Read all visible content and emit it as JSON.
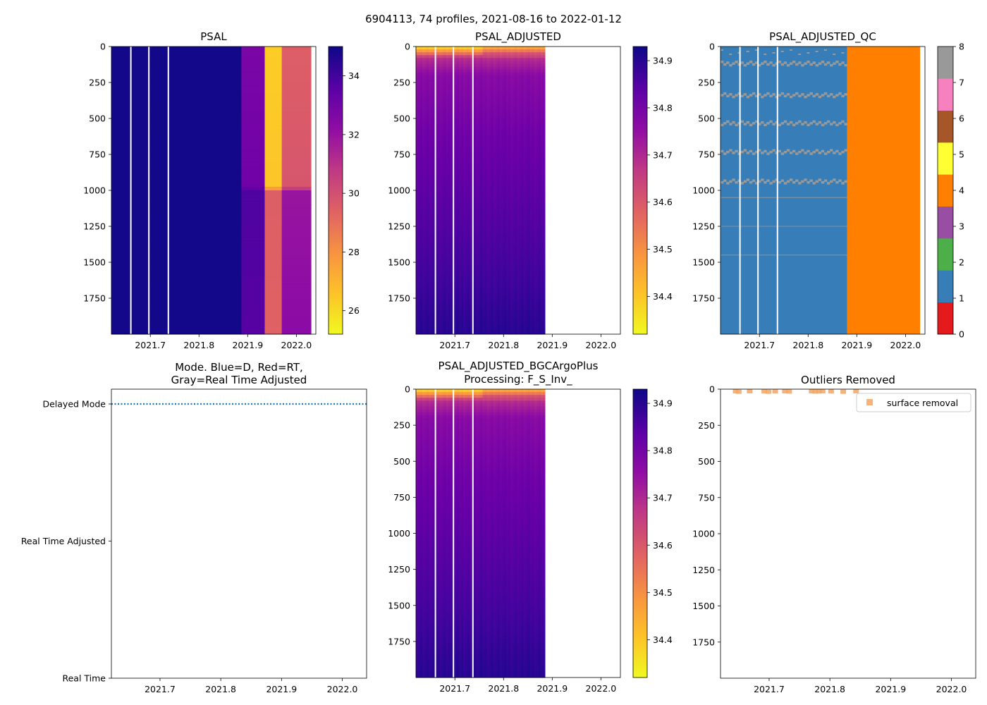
{
  "suptitle": "6904113, 74 profiles, 2021-08-16 to 2022-01-12",
  "colors": {
    "qc_good": "#377eb8",
    "qc_bad": "#ff7f00",
    "qc_missing": "#999999",
    "delayed": "#1f77b4",
    "outlier": "#f4a460"
  },
  "chart_data": [
    {
      "id": "psal",
      "type": "heatmap",
      "title": "PSAL",
      "xlim": [
        2021.62,
        2022.04
      ],
      "x_ticks": [
        "2021.7",
        "2021.8",
        "2021.9",
        "2022.0"
      ],
      "ylim": [
        2000,
        0
      ],
      "y_ticks": [
        "0",
        "250",
        "500",
        "750",
        "1000",
        "1250",
        "1500",
        "1750"
      ],
      "colormap": "plasma_r",
      "clim": [
        25.2,
        35.0
      ],
      "colorbar_ticks": [
        "34",
        "32",
        "30",
        "28",
        "26"
      ],
      "colorbar_tick_values": [
        34,
        32,
        30,
        28,
        26
      ],
      "data_end_x": 2022.03,
      "gap_lines_x": [
        2021.66,
        2021.697,
        2021.737
      ],
      "segments": [
        {
          "x0": 2021.62,
          "x1": 2021.887,
          "depth_profile": [
            [
              0,
              34.9
            ],
            [
              2000,
              34.9
            ]
          ]
        },
        {
          "x0": 2021.887,
          "x1": 2021.935,
          "depth_profile": [
            [
              0,
              32.6
            ],
            [
              980,
              32.9
            ],
            [
              1000,
              33.7
            ],
            [
              2000,
              33.5
            ]
          ]
        },
        {
          "x0": 2021.935,
          "x1": 2021.97,
          "depth_profile": [
            [
              0,
              26.2
            ],
            [
              980,
              26.4
            ],
            [
              1000,
              29.3
            ],
            [
              2000,
              29.2
            ]
          ]
        },
        {
          "x0": 2021.97,
          "x1": 2022.03,
          "depth_profile": [
            [
              0,
              29.3
            ],
            [
              980,
              29.6
            ],
            [
              1000,
              31.8
            ],
            [
              2000,
              32.2
            ]
          ]
        }
      ]
    },
    {
      "id": "psal_adjusted",
      "type": "heatmap",
      "title": "PSAL_ADJUSTED",
      "xlim": [
        2021.62,
        2022.04
      ],
      "x_ticks": [
        "2021.7",
        "2021.8",
        "2021.9",
        "2022.0"
      ],
      "ylim": [
        2000,
        0
      ],
      "y_ticks": [
        "0",
        "250",
        "500",
        "750",
        "1000",
        "1250",
        "1500",
        "1750"
      ],
      "colormap": "plasma_r",
      "clim": [
        34.32,
        34.93
      ],
      "colorbar_ticks": [
        "34.9",
        "34.8",
        "34.7",
        "34.6",
        "34.5",
        "34.4"
      ],
      "colorbar_tick_values": [
        34.9,
        34.8,
        34.7,
        34.6,
        34.5,
        34.4
      ],
      "data_end_x": 2021.885,
      "gap_lines_x": [
        2021.66,
        2021.697,
        2021.737
      ],
      "depth_profile": [
        [
          0,
          34.35
        ],
        [
          40,
          34.5
        ],
        [
          80,
          34.68
        ],
        [
          200,
          34.76
        ],
        [
          600,
          34.8
        ],
        [
          1200,
          34.84
        ],
        [
          2000,
          34.9
        ]
      ]
    },
    {
      "id": "psal_adjusted_qc",
      "type": "heatmap",
      "title": "PSAL_ADJUSTED_QC",
      "xlim": [
        2021.62,
        2022.04
      ],
      "x_ticks": [
        "2021.7",
        "2021.8",
        "2021.9",
        "2022.0"
      ],
      "ylim": [
        2000,
        0
      ],
      "y_ticks": [
        "0",
        "250",
        "500",
        "750",
        "1000",
        "1250",
        "1500",
        "1750"
      ],
      "colorbar_ticks": [
        "8",
        "7",
        "6",
        "5",
        "4",
        "3",
        "2",
        "1",
        "0"
      ],
      "colorbar_tick_values": [
        8,
        7,
        6,
        5,
        4,
        3,
        2,
        1,
        0
      ],
      "qc_colors": [
        "#e41a1c",
        "#377eb8",
        "#4daf4a",
        "#984ea3",
        "#ff7f00",
        "#ffff33",
        "#a65628",
        "#f781bf",
        "#999999"
      ],
      "qc1_x_range": [
        2021.62,
        2021.88
      ],
      "qc4_x_range": [
        2021.88,
        2022.03
      ],
      "qc8_depth_bands": [
        110,
        330,
        525,
        725,
        930
      ],
      "gap_lines_x": [
        2021.66,
        2021.697,
        2021.737
      ]
    },
    {
      "id": "mode",
      "type": "line",
      "title_lines": [
        "Mode. Blue=D, Red=RT,",
        "Gray=Real Time Adjusted"
      ],
      "xlim": [
        2021.62,
        2022.04
      ],
      "x_ticks": [
        "2021.7",
        "2021.8",
        "2021.9",
        "2022.0"
      ],
      "y_categories": [
        "Delayed Mode",
        "Real Time Adjusted",
        "Real Time"
      ],
      "series": [
        {
          "name": "Delayed Mode",
          "style": "dotted",
          "x_range": [
            2021.62,
            2022.04
          ],
          "y": "Delayed Mode"
        }
      ]
    },
    {
      "id": "bgc_argo_plus",
      "type": "heatmap",
      "title_lines": [
        "PSAL_ADJUSTED_BGCArgoPlus",
        "Processing: F_S_Inv_"
      ],
      "xlim": [
        2021.62,
        2022.04
      ],
      "x_ticks": [
        "2021.7",
        "2021.8",
        "2021.9",
        "2022.0"
      ],
      "ylim": [
        2000,
        0
      ],
      "y_ticks": [
        "0",
        "250",
        "500",
        "750",
        "1000",
        "1250",
        "1500",
        "1750"
      ],
      "colormap": "plasma_r",
      "clim": [
        34.32,
        34.93
      ],
      "colorbar_ticks": [
        "34.9",
        "34.8",
        "34.7",
        "34.6",
        "34.5",
        "34.4"
      ],
      "colorbar_tick_values": [
        34.9,
        34.8,
        34.7,
        34.6,
        34.5,
        34.4
      ],
      "data_end_x": 2021.885,
      "gap_lines_x": [
        2021.66,
        2021.697,
        2021.737
      ],
      "depth_profile": [
        [
          0,
          34.35
        ],
        [
          40,
          34.5
        ],
        [
          80,
          34.68
        ],
        [
          200,
          34.76
        ],
        [
          600,
          34.8
        ],
        [
          1200,
          34.84
        ],
        [
          2000,
          34.9
        ]
      ]
    },
    {
      "id": "outliers",
      "type": "scatter",
      "title": "Outliers Removed",
      "xlim": [
        2021.62,
        2022.04
      ],
      "x_ticks": [
        "2021.7",
        "2021.8",
        "2021.9",
        "2022.0"
      ],
      "ylim": [
        2000,
        0
      ],
      "y_ticks": [
        "0",
        "250",
        "500",
        "750",
        "1000",
        "1250",
        "1500",
        "1750"
      ],
      "legend": {
        "label": "surface removal",
        "loc": "upper right"
      },
      "points": [
        {
          "x": 2021.645,
          "y": 5
        },
        {
          "x": 2021.65,
          "y": 8
        },
        {
          "x": 2021.668,
          "y": 5
        },
        {
          "x": 2021.692,
          "y": 6
        },
        {
          "x": 2021.699,
          "y": 8
        },
        {
          "x": 2021.71,
          "y": 6
        },
        {
          "x": 2021.726,
          "y": 5
        },
        {
          "x": 2021.733,
          "y": 7
        },
        {
          "x": 2021.77,
          "y": 5
        },
        {
          "x": 2021.776,
          "y": 7
        },
        {
          "x": 2021.782,
          "y": 6
        },
        {
          "x": 2021.788,
          "y": 5
        },
        {
          "x": 2021.802,
          "y": 6
        },
        {
          "x": 2021.822,
          "y": 8
        },
        {
          "x": 2021.843,
          "y": 5
        }
      ]
    }
  ]
}
